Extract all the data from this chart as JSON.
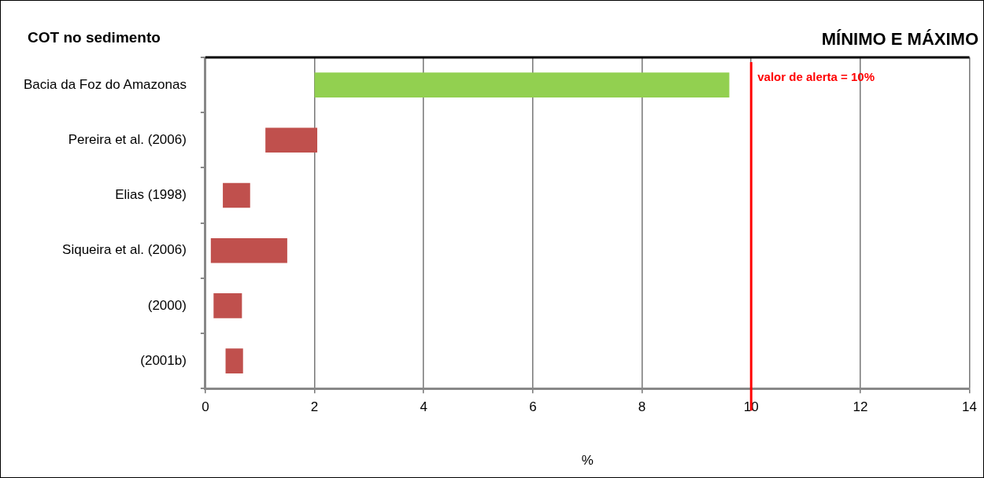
{
  "chart_data": {
    "type": "bar",
    "orientation": "horizontal",
    "title": "COT no sedimento",
    "subtitle": "MÍNIMO E MÁXIMO",
    "xlabel": "%",
    "categories": [
      "Bacia da Foz do Amazonas",
      "Pereira et al. (2006)",
      "Elias (1998)",
      "Siqueira et al. (2006)",
      "(2000)",
      "(2001b)"
    ],
    "base": [
      2.0,
      1.1,
      0.32,
      0.1,
      0.15,
      0.37
    ],
    "values": [
      7.6,
      0.95,
      0.5,
      1.4,
      0.52,
      0.32
    ],
    "colors": [
      "#92d050",
      "#c0504d",
      "#c0504d",
      "#c0504d",
      "#c0504d",
      "#c0504d"
    ],
    "xlim": [
      0,
      14
    ],
    "xticks": [
      0,
      2,
      4,
      6,
      8,
      10,
      12,
      14
    ],
    "grid": "x",
    "legend": false,
    "ref_lines": [
      {
        "axis": "x",
        "value": 10,
        "label": "valor de alerta = 10%",
        "color": "#ff0000"
      }
    ]
  }
}
